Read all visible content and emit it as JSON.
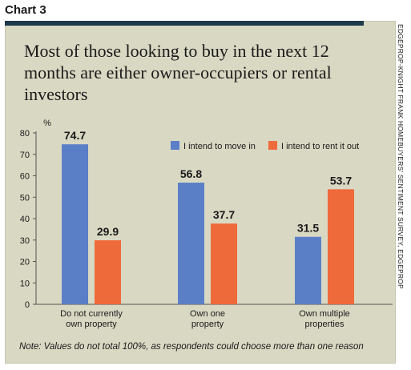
{
  "label": "Chart 3",
  "title": "Most of those looking to buy in the next 12 months are either owner-occupiers or rental investors",
  "side_text": "EDGEPROP-KNIGHT FRANK HOMEBUYERS' SENTIMENT SURVEY, EDGEPROP",
  "note": "Note: Values do not total 100%, as respondents could choose more than one reason",
  "colors": {
    "panel": "#d9d8c3",
    "move_in": "#5b7fc7",
    "rent_out": "#ef6a3a",
    "topbar": "#1f3a4a"
  },
  "chart_data": {
    "type": "bar",
    "title": "Most of those looking to buy in the next 12 months are either owner-occupiers or rental investors",
    "ylabel": "%",
    "ylim": [
      0,
      80
    ],
    "yticks": [
      0,
      10,
      20,
      30,
      40,
      50,
      60,
      70,
      80
    ],
    "categories": [
      [
        "Do not currently",
        "own property"
      ],
      [
        "Own one",
        "property"
      ],
      [
        "Own multiple",
        "properties"
      ]
    ],
    "series": [
      {
        "name": "I intend to move in",
        "values": [
          74.7,
          56.8,
          31.5
        ]
      },
      {
        "name": "I intend to rent it out",
        "values": [
          29.9,
          37.7,
          53.7
        ]
      }
    ],
    "legend": "top-right",
    "grid": false
  }
}
